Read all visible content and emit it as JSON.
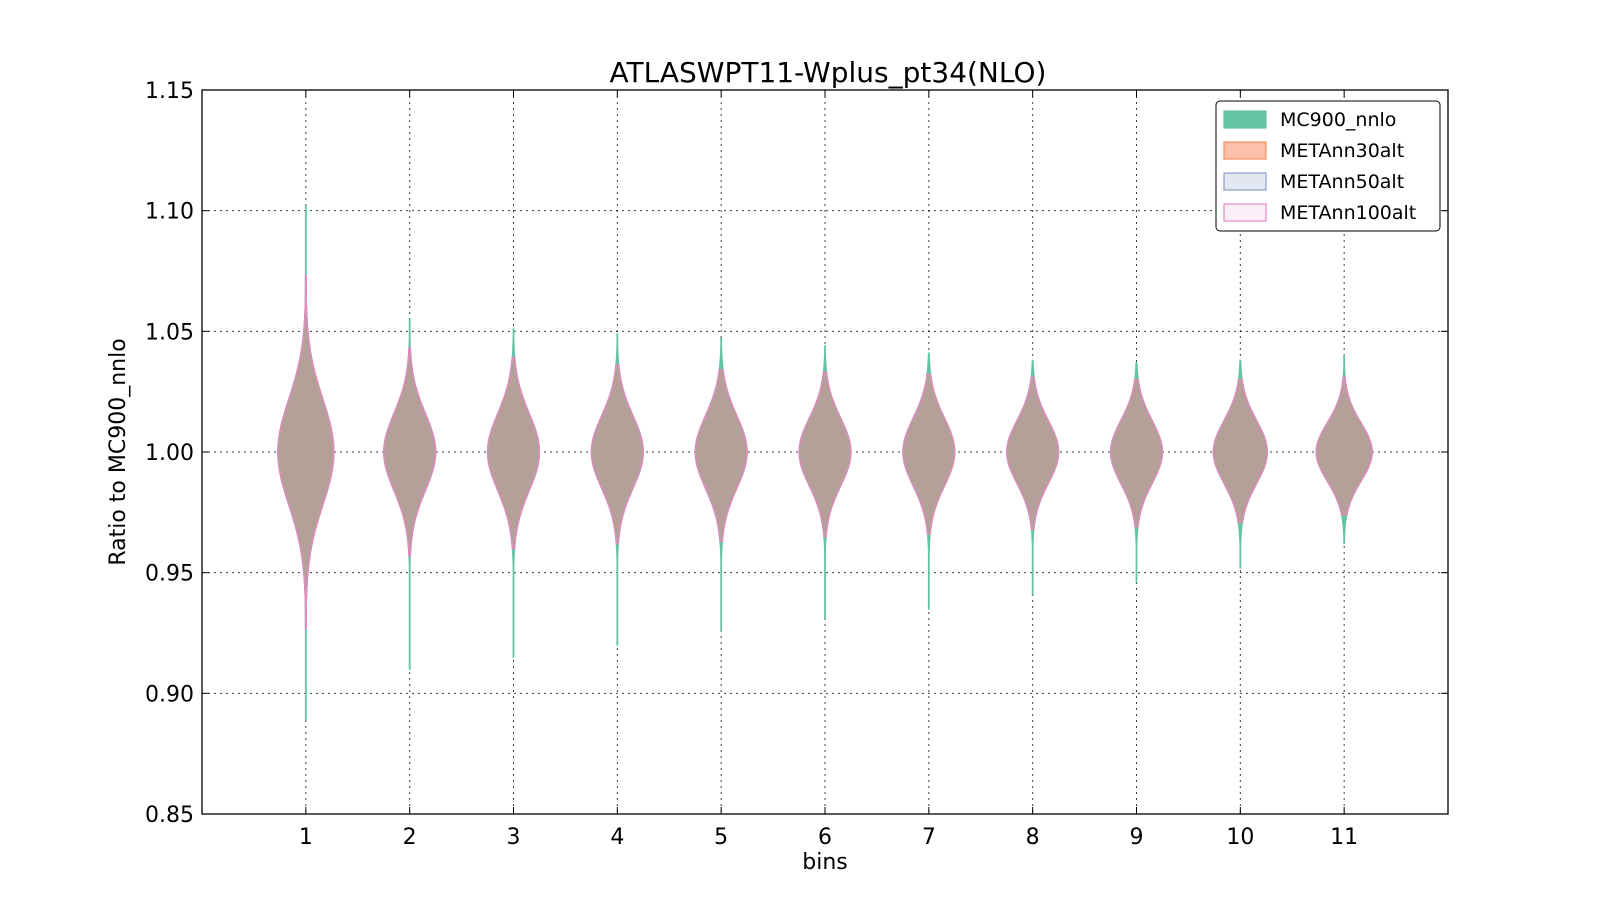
{
  "chart_data": {
    "type": "violin",
    "title": "ATLASWPT11-Wplus_pt34(NLO)",
    "xlabel": "bins",
    "ylabel": "Ratio to MC900_nnlo",
    "ylim": [
      0.85,
      1.15
    ],
    "xlim": [
      0,
      12
    ],
    "yticks": [
      "0.85",
      "0.90",
      "0.95",
      "1.00",
      "1.05",
      "1.10",
      "1.15"
    ],
    "categories": [
      "1",
      "2",
      "3",
      "4",
      "5",
      "6",
      "7",
      "8",
      "9",
      "10",
      "11"
    ],
    "grid": true,
    "legend_position": "top-right",
    "series": [
      {
        "name": "MC900_nnlo",
        "color": "#66c2a5",
        "fill_opacity": 1.0,
        "min": [
          0.889,
          0.91,
          0.915,
          0.92,
          0.926,
          0.931,
          0.935,
          0.941,
          0.946,
          0.952,
          0.962
        ],
        "max": [
          1.102,
          1.055,
          1.051,
          1.049,
          1.047,
          1.044,
          1.041,
          1.038,
          1.037,
          1.038,
          1.04
        ],
        "halfwidth": [
          0.27,
          0.25,
          0.25,
          0.25,
          0.25,
          0.25,
          0.25,
          0.25,
          0.25,
          0.26,
          0.27
        ],
        "sigma": [
          0.022,
          0.016,
          0.016,
          0.015,
          0.015,
          0.014,
          0.014,
          0.013,
          0.013,
          0.013,
          0.012
        ]
      },
      {
        "name": "METAnn30alt",
        "color": "#fc8d62",
        "fill_opacity": 0.55,
        "min": [
          0.927,
          0.957,
          0.96,
          0.962,
          0.963,
          0.965,
          0.966,
          0.968,
          0.969,
          0.971,
          0.974
        ],
        "max": [
          1.073,
          1.043,
          1.039,
          1.036,
          1.034,
          1.033,
          1.032,
          1.031,
          1.03,
          1.03,
          1.031
        ],
        "halfwidth": [
          0.27,
          0.25,
          0.25,
          0.25,
          0.25,
          0.25,
          0.25,
          0.25,
          0.25,
          0.26,
          0.27
        ],
        "sigma": [
          0.022,
          0.016,
          0.016,
          0.015,
          0.015,
          0.014,
          0.014,
          0.013,
          0.013,
          0.013,
          0.012
        ]
      },
      {
        "name": "METAnn50alt",
        "color": "#8da0cb",
        "fill_opacity": 0.25,
        "min": [
          0.927,
          0.957,
          0.96,
          0.962,
          0.963,
          0.965,
          0.966,
          0.968,
          0.969,
          0.971,
          0.974
        ],
        "max": [
          1.073,
          1.043,
          1.039,
          1.036,
          1.034,
          1.033,
          1.032,
          1.031,
          1.03,
          1.03,
          1.031
        ],
        "halfwidth": [
          0.27,
          0.25,
          0.25,
          0.25,
          0.25,
          0.25,
          0.25,
          0.25,
          0.25,
          0.26,
          0.27
        ],
        "sigma": [
          0.022,
          0.016,
          0.016,
          0.015,
          0.015,
          0.014,
          0.014,
          0.013,
          0.013,
          0.013,
          0.012
        ]
      },
      {
        "name": "METAnn100alt",
        "color": "#e78ac3",
        "fill_opacity": 0.12,
        "min": [
          0.927,
          0.957,
          0.96,
          0.962,
          0.963,
          0.965,
          0.966,
          0.968,
          0.969,
          0.971,
          0.974
        ],
        "max": [
          1.073,
          1.043,
          1.039,
          1.036,
          1.034,
          1.033,
          1.032,
          1.031,
          1.03,
          1.03,
          1.031
        ],
        "halfwidth": [
          0.27,
          0.25,
          0.25,
          0.25,
          0.25,
          0.25,
          0.25,
          0.25,
          0.25,
          0.26,
          0.27
        ],
        "sigma": [
          0.022,
          0.016,
          0.016,
          0.015,
          0.015,
          0.014,
          0.014,
          0.013,
          0.013,
          0.013,
          0.012
        ]
      }
    ]
  }
}
